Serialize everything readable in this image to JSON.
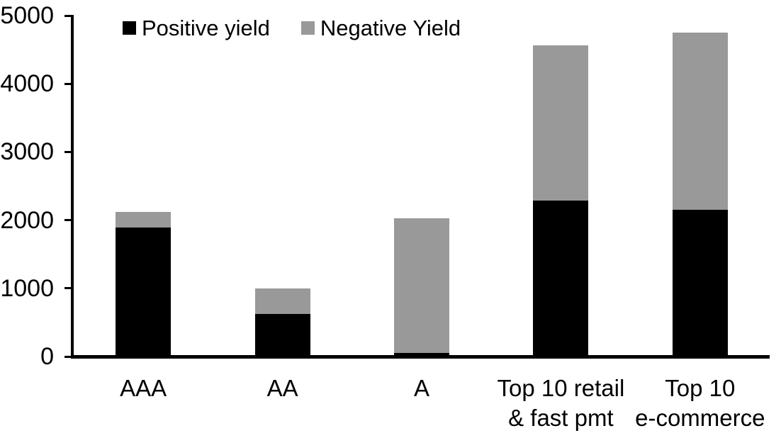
{
  "chart_data": {
    "type": "bar",
    "stacked": true,
    "title": "",
    "xlabel": "",
    "ylabel": "",
    "categories": [
      "AAA",
      "AA",
      "A",
      "Top 10 retail\n& fast pmt",
      "Top 10\ne-commerce"
    ],
    "series": [
      {
        "name": "Positive yield",
        "color": "#000000",
        "values": [
          1890,
          620,
          50,
          2290,
          2150
        ]
      },
      {
        "name": "Negative Yield",
        "color": "#999999",
        "values": [
          230,
          380,
          1980,
          2270,
          2600
        ]
      }
    ],
    "totals": [
      2120,
      1000,
      2030,
      4560,
      4750
    ],
    "ylim": [
      0,
      5000
    ],
    "yticks": [
      0,
      1000,
      2000,
      3000,
      4000,
      5000
    ],
    "grid": false,
    "legend_position": "top",
    "colors": {
      "axis": "#000000",
      "background": "#ffffff",
      "text": "#000000"
    }
  }
}
